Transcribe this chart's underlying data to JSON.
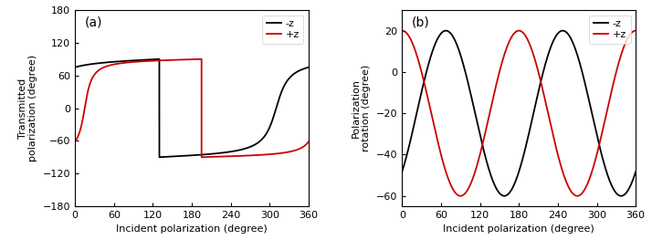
{
  "xlim": [
    0,
    360
  ],
  "xticks": [
    0,
    60,
    120,
    180,
    240,
    300,
    360
  ],
  "xlabel": "Incident polarization (degree)",
  "panel_a": {
    "ylabel": "Transmitted\npolarization (degree)",
    "ylim": [
      -180,
      180
    ],
    "yticks": [
      -180,
      -120,
      -60,
      0,
      60,
      120,
      180
    ],
    "label": "(a)",
    "black_k": 8.0,
    "black_phase_deg": 45.0,
    "red_k": 12.0,
    "red_phase_deg": -30.0
  },
  "panel_b": {
    "ylabel": "Polarization\nrotation (degree)",
    "ylim": [
      -65,
      30
    ],
    "yticks": [
      -60,
      -40,
      -20,
      0,
      20
    ],
    "label": "(b)",
    "black_amplitude": 40,
    "black_mean": -20,
    "black_phase_deg": -45.0,
    "black_period": 180.0,
    "red_amplitude": 40,
    "red_mean": -20,
    "red_phase_deg": 90.0,
    "red_period": 180.0
  },
  "line_color_neg_z": "#000000",
  "line_color_pos_z": "#cc0000",
  "line_width": 1.3,
  "label_neg_z": "-z",
  "label_pos_z": "+z",
  "background_color": "#ffffff",
  "tick_fontsize": 8,
  "label_fontsize": 8,
  "legend_fontsize": 8,
  "panel_label_fontsize": 10
}
